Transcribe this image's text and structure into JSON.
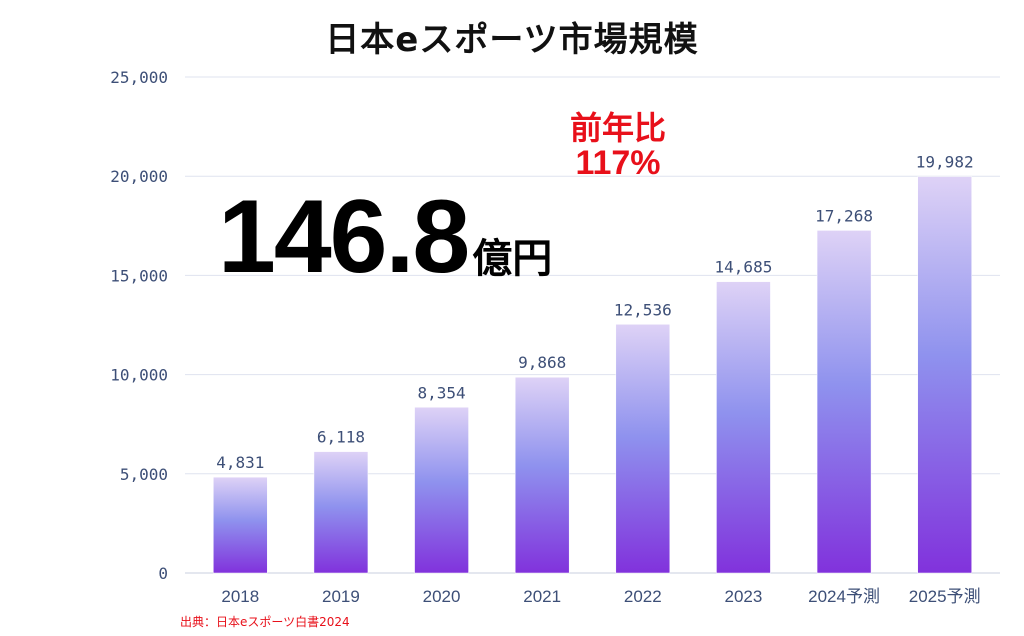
{
  "title": "日本eスポーツ市場規模",
  "highlight": {
    "value": "146.8",
    "unit": "億円"
  },
  "yoy": {
    "label": "前年比",
    "value": "117%"
  },
  "source": "出典：日本eスポーツ白書2024",
  "colors": {
    "bar_top": "#ded2f6",
    "bar_mid": "#8f92ee",
    "bar_bottom": "#8132dc",
    "grid": "#dfe3ef",
    "axis_text": "#3d4f77",
    "accent": "#e8101a"
  },
  "chart_data": {
    "type": "bar",
    "title": "日本eスポーツ市場規模",
    "categories": [
      "2018",
      "2019",
      "2020",
      "2021",
      "2022",
      "2023",
      "2024予測",
      "2025予測"
    ],
    "values": [
      4831,
      6118,
      8354,
      9868,
      12536,
      14685,
      17268,
      19982
    ],
    "value_labels": [
      "4,831",
      "6,118",
      "8,354",
      "9,868",
      "12,536",
      "14,685",
      "17,268",
      "19,982"
    ],
    "ylim": [
      0,
      25000
    ],
    "yticks": [
      0,
      5000,
      10000,
      15000,
      20000,
      25000
    ],
    "ytick_labels": [
      "0",
      "5,000",
      "10,000",
      "15,000",
      "20,000",
      "25,000"
    ],
    "xlabel": "",
    "ylabel": "",
    "grid": true,
    "legend": "none"
  }
}
